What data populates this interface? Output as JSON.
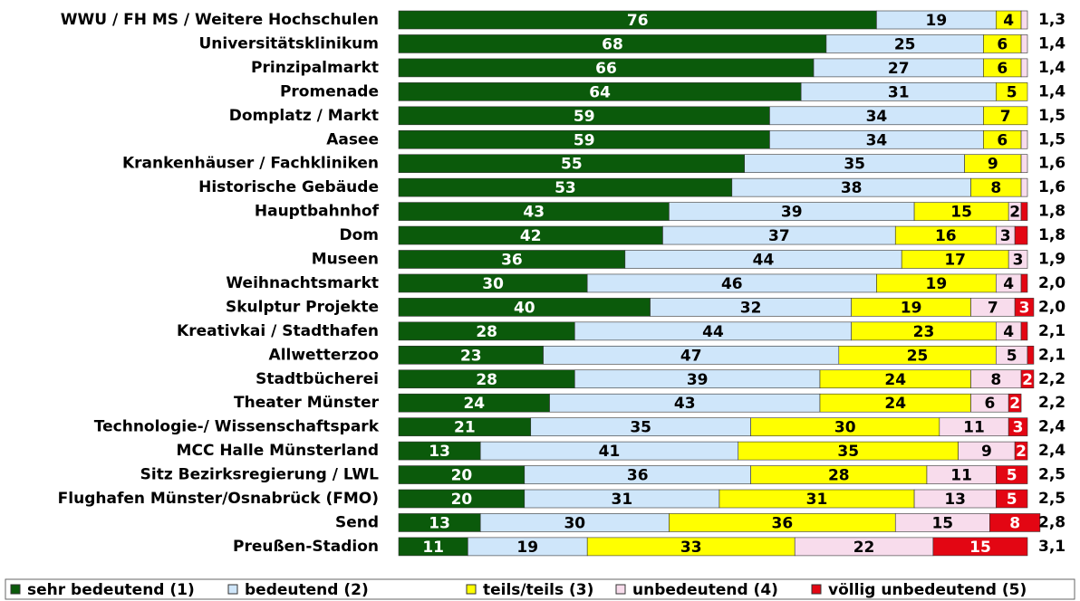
{
  "chart_data": {
    "type": "stacked-bar-horizontal",
    "categories": [
      "WWU / FH MS / Weitere Hochschulen",
      "Universitätsklinikum",
      "Prinzipalmarkt",
      "Promenade",
      "Domplatz / Markt",
      "Aasee",
      "Krankenhäuser / Fachkliniken",
      "Historische Gebäude",
      "Hauptbahnhof",
      "Dom",
      "Museen",
      "Weihnachtsmarkt",
      "Skulptur Projekte",
      "Kreativkai / Stadthafen",
      "Allwetterzoo",
      "Stadtbücherei",
      "Theater Münster",
      "Technologie-/ Wissenschaftspark",
      "MCC Halle Münsterland",
      "Sitz Bezirksregierung / LWL",
      "Flughafen Münster/Osnabrück (FMO)",
      "Send",
      "Preußen-Stadion"
    ],
    "xlim": [
      0,
      100
    ],
    "series": [
      {
        "name": "sehr bedeutend (1)",
        "color": "#0b5a0b",
        "label_color": "#ffffff",
        "values": [
          76,
          68,
          66,
          64,
          59,
          59,
          55,
          53,
          43,
          42,
          36,
          30,
          40,
          28,
          23,
          28,
          24,
          21,
          13,
          20,
          20,
          13,
          11
        ],
        "value_labels": [
          "76",
          "68",
          "66",
          "64",
          "59",
          "59",
          "55",
          "53",
          "43",
          "42",
          "36",
          "30",
          "40",
          "28",
          "23",
          "28",
          "24",
          "21",
          "13",
          "20",
          "20",
          "13",
          "11"
        ]
      },
      {
        "name": "bedeutend (2)",
        "color": "#cfe6fa",
        "label_color": "#000000",
        "values": [
          19,
          25,
          27,
          31,
          34,
          34,
          35,
          38,
          39,
          37,
          44,
          46,
          32,
          44,
          47,
          39,
          43,
          35,
          41,
          36,
          31,
          30,
          19
        ],
        "value_labels": [
          "19",
          "25",
          "27",
          "31",
          "34",
          "34",
          "35",
          "38",
          "39",
          "37",
          "44",
          "46",
          "32",
          "44",
          "47",
          "39",
          "43",
          "35",
          "41",
          "36",
          "31",
          "30",
          "19"
        ]
      },
      {
        "name": "teils/teils (3)",
        "color": "#ffff00",
        "label_color": "#000000",
        "values": [
          4,
          6,
          6,
          5,
          7,
          6,
          9,
          8,
          15,
          16,
          17,
          19,
          19,
          23,
          25,
          24,
          24,
          30,
          35,
          28,
          31,
          36,
          33
        ],
        "value_labels": [
          "4",
          "6",
          "6",
          "5",
          "7",
          "6",
          "9",
          "8",
          "15",
          "16",
          "17",
          "19",
          "19",
          "23",
          "25",
          "24",
          "24",
          "30",
          "35",
          "28",
          "31",
          "36",
          "33"
        ]
      },
      {
        "name": "unbedeutend (4)",
        "color": "#f8dcec",
        "label_color": "#000000",
        "values": [
          1,
          1,
          1,
          0,
          0,
          1,
          1,
          1,
          2,
          3,
          3,
          4,
          7,
          4,
          5,
          8,
          6,
          11,
          9,
          11,
          13,
          15,
          22
        ],
        "value_labels": [
          null,
          null,
          null,
          null,
          null,
          null,
          null,
          null,
          "2",
          "3",
          "3",
          "4",
          "7",
          "4",
          "5",
          "8",
          "6",
          "11",
          "9",
          "11",
          "13",
          "15",
          "22"
        ]
      },
      {
        "name": "völlig unbedeutend (5)",
        "color": "#e30613",
        "label_color": "#ffffff",
        "values": [
          0,
          0,
          0,
          0,
          0,
          0,
          0,
          0,
          1,
          2,
          0,
          1,
          3,
          1,
          1,
          2,
          2,
          3,
          2,
          5,
          5,
          8,
          15
        ],
        "value_labels": [
          null,
          null,
          null,
          null,
          null,
          null,
          null,
          null,
          null,
          null,
          null,
          null,
          "3",
          null,
          null,
          "2",
          "2",
          "3",
          "2",
          "5",
          "5",
          "8",
          "15"
        ]
      }
    ],
    "averages": [
      {
        "value": 1.3,
        "label": "1,3"
      },
      {
        "value": 1.4,
        "label": "1,4"
      },
      {
        "value": 1.4,
        "label": "1,4"
      },
      {
        "value": 1.4,
        "label": "1,4"
      },
      {
        "value": 1.5,
        "label": "1,5"
      },
      {
        "value": 1.5,
        "label": "1,5"
      },
      {
        "value": 1.6,
        "label": "1,6"
      },
      {
        "value": 1.6,
        "label": "1,6"
      },
      {
        "value": 1.8,
        "label": "1,8"
      },
      {
        "value": 1.8,
        "label": "1,8"
      },
      {
        "value": 1.9,
        "label": "1,9"
      },
      {
        "value": 2.0,
        "label": "2,0"
      },
      {
        "value": 2.0,
        "label": "2,0"
      },
      {
        "value": 2.1,
        "label": "2,1"
      },
      {
        "value": 2.1,
        "label": "2,1"
      },
      {
        "value": 2.2,
        "label": "2,2"
      },
      {
        "value": 2.2,
        "label": "2,2"
      },
      {
        "value": 2.4,
        "label": "2,4"
      },
      {
        "value": 2.4,
        "label": "2,4"
      },
      {
        "value": 2.5,
        "label": "2,5"
      },
      {
        "value": 2.5,
        "label": "2,5"
      },
      {
        "value": 2.8,
        "label": "2,8"
      },
      {
        "value": 3.1,
        "label": "3,1"
      }
    ],
    "legend": "bottom"
  }
}
